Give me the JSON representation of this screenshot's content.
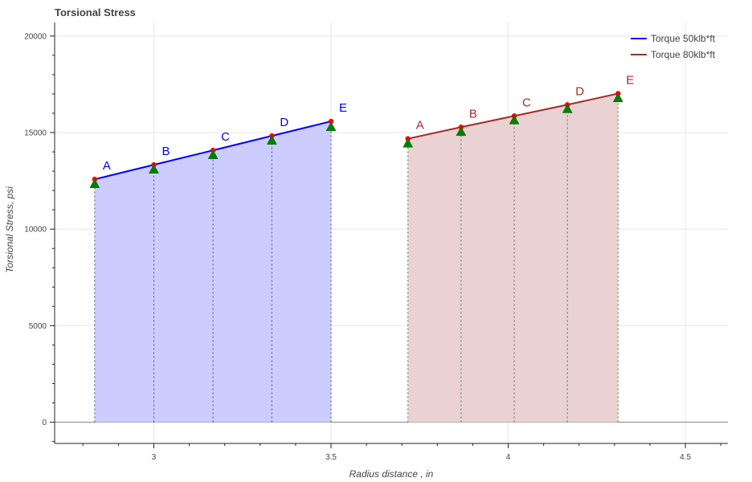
{
  "chart_data": {
    "type": "line",
    "title": "Torsional Stress",
    "xlabel": "Radius distance , in",
    "ylabel": "Torsional Stress, psi",
    "xlim": [
      2.72,
      4.62
    ],
    "ylim": [
      -1100,
      20700
    ],
    "x_ticks": [
      3,
      3.5,
      4,
      4.5
    ],
    "y_ticks": [
      0,
      5000,
      10000,
      15000,
      20000
    ],
    "grid": true,
    "legend_position": "top-right",
    "series": [
      {
        "name": "Torque 50klb*ft",
        "color": "#0000ff",
        "fill_color": "#ccccff",
        "drop_color": "#2f5f7f",
        "x": [
          2.833,
          3.0,
          3.167,
          3.333,
          3.5
        ],
        "y": [
          12580,
          13330,
          14080,
          14830,
          15580
        ],
        "markers_y": [
          12350,
          13100,
          13850,
          14600,
          15300
        ],
        "labels": [
          "A",
          "B",
          "C",
          "D",
          "E"
        ]
      },
      {
        "name": "Torque 80klb*ft",
        "color": "#a52a2a",
        "fill_color": "#ead2d2",
        "drop_color": "#3f7f3f",
        "x": [
          3.717,
          3.867,
          4.017,
          4.167,
          4.31
        ],
        "y": [
          14680,
          15280,
          15860,
          16440,
          17020
        ],
        "markers_y": [
          14450,
          15050,
          15650,
          16230,
          16800
        ],
        "labels": [
          "A",
          "B",
          "C",
          "D",
          "E"
        ]
      }
    ]
  }
}
